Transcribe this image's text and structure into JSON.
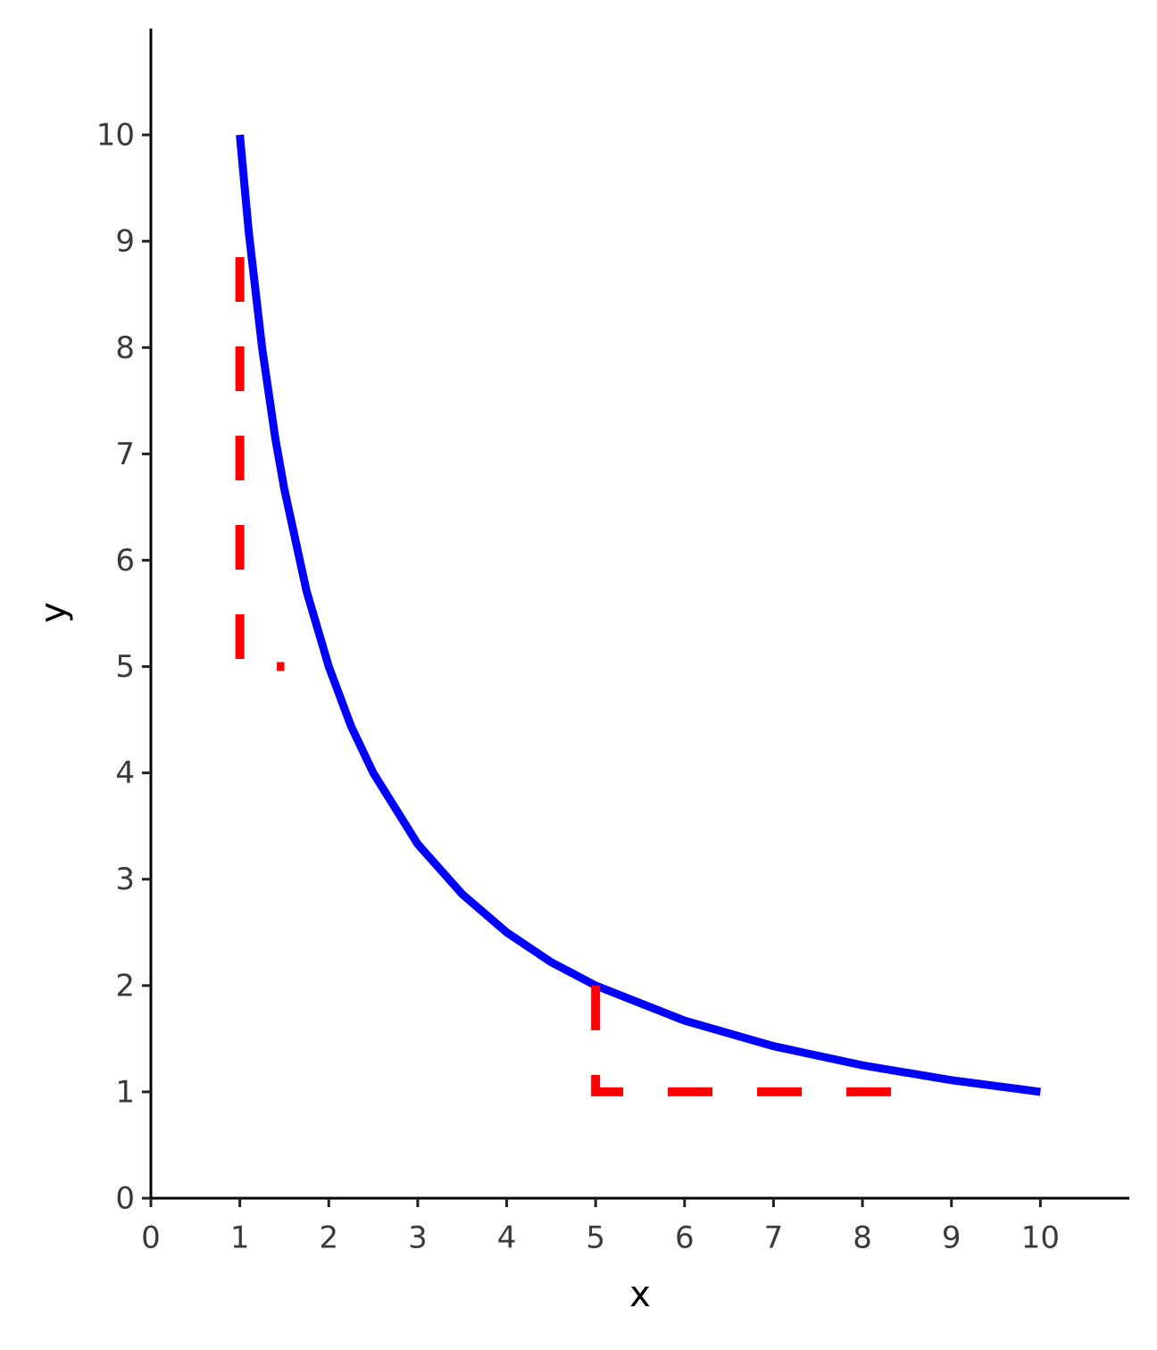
{
  "chart_data": {
    "type": "line",
    "x_label": "x",
    "y_label": "y",
    "xlim": [
      0,
      11
    ],
    "ylim": [
      0,
      11
    ],
    "xticks": [
      0,
      1,
      2,
      3,
      4,
      5,
      6,
      7,
      8,
      9,
      10
    ],
    "yticks": [
      0,
      1,
      2,
      3,
      4,
      5,
      6,
      7,
      8,
      9,
      10
    ],
    "series": [
      {
        "color": "#0000ff",
        "style": "solid",
        "x": [
          1,
          1.1,
          1.25,
          1.4,
          1.5,
          1.75,
          2,
          2.25,
          2.5,
          3,
          3.5,
          4,
          4.5,
          5,
          6,
          7,
          8,
          9,
          10
        ],
        "values": [
          10,
          9.09,
          8,
          7.14,
          6.67,
          5.71,
          5,
          4.44,
          4,
          3.33,
          2.86,
          2.5,
          2.22,
          2,
          1.67,
          1.43,
          1.25,
          1.11,
          1
        ]
      },
      {
        "color": "#ff0000",
        "style": "dashed",
        "x": [
          1,
          1,
          1.5
        ],
        "values": [
          8.85,
          5,
          5
        ]
      },
      {
        "color": "#ff0000",
        "style": "dashed",
        "x": [
          5,
          5,
          8.6
        ],
        "values": [
          2,
          1,
          1
        ]
      }
    ]
  }
}
